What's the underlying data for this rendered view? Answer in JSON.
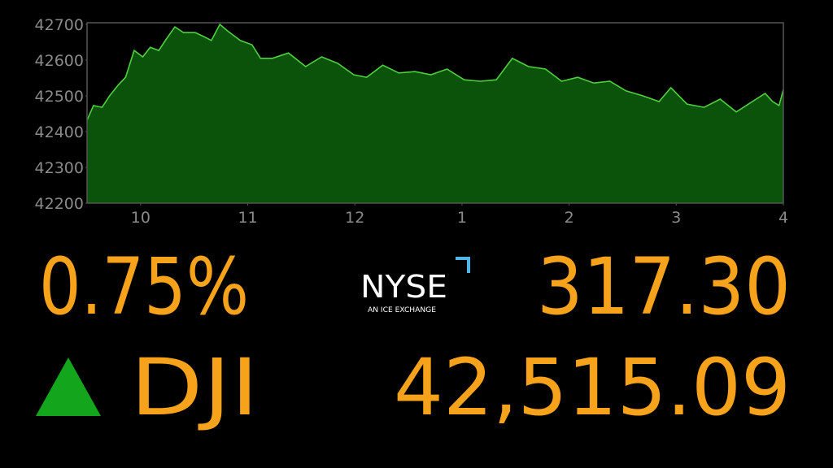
{
  "chart_data": {
    "type": "area",
    "x": [
      9.5,
      9.56,
      9.64,
      9.71,
      9.79,
      9.86,
      9.94,
      10.02,
      10.09,
      10.17,
      10.24,
      10.32,
      10.4,
      10.51,
      10.59,
      10.66,
      10.74,
      10.81,
      10.93,
      11.04,
      11.12,
      11.23,
      11.38,
      11.54,
      11.69,
      11.84,
      11.99,
      12.11,
      12.26,
      12.41,
      12.56,
      12.71,
      12.86,
      13.02,
      13.17,
      13.32,
      13.47,
      13.62,
      13.78,
      13.93,
      14.08,
      14.23,
      14.38,
      14.53,
      14.69,
      14.84,
      14.95,
      15.1,
      15.26,
      15.41,
      15.56,
      15.71,
      15.83,
      15.9,
      15.96,
      16.0
    ],
    "values": [
      42432,
      42473,
      42468,
      42500,
      42530,
      42552,
      42627,
      42609,
      42636,
      42627,
      42659,
      42693,
      42677,
      42677,
      42666,
      42655,
      42700,
      42682,
      42655,
      42643,
      42605,
      42605,
      42620,
      42582,
      42609,
      42591,
      42559,
      42552,
      42586,
      42564,
      42568,
      42559,
      42575,
      42545,
      42541,
      42545,
      42605,
      42582,
      42575,
      42541,
      42552,
      42536,
      42541,
      42514,
      42500,
      42484,
      42523,
      42477,
      42468,
      42491,
      42455,
      42484,
      42507,
      42484,
      42473,
      42518
    ],
    "color": "#0b520b",
    "line_color": "#4fcf3f",
    "xlim": [
      9.5,
      16
    ],
    "ylim": [
      42200,
      42700
    ],
    "xticks": [
      10,
      11,
      12,
      {
        "value": 13,
        "label": "1"
      },
      {
        "value": 14,
        "label": "2"
      },
      {
        "value": 15,
        "label": "3"
      },
      {
        "value": 16,
        "label": "4"
      }
    ],
    "yticks": [
      42200,
      42300,
      42400,
      42500,
      42600,
      42700
    ],
    "grid": false
  },
  "ticker": {
    "change_percent": "0.75%",
    "change_points": "317.30",
    "symbol": "DJI",
    "last": "42,515.09"
  },
  "logo": {
    "name": "NYSE",
    "tagline": "AN ICE EXCHANGE"
  }
}
